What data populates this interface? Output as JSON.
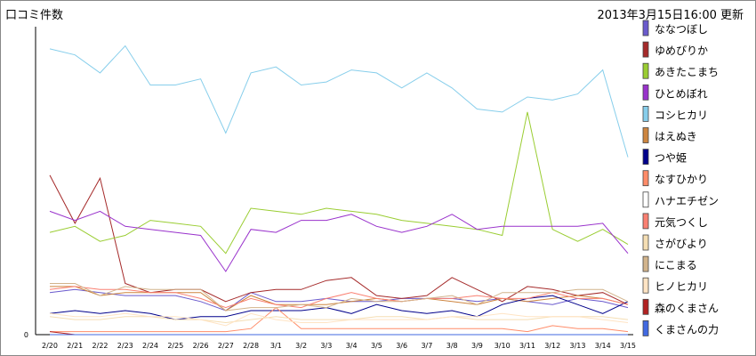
{
  "header": {
    "title": "口コミ件数",
    "updated": "2013年3月15日16:00 更新"
  },
  "chart_data": {
    "type": "line",
    "title": "口コミ件数",
    "xlabel": "",
    "ylabel": "",
    "ylim": [
      0,
      100
    ],
    "y_ticks": [
      "0"
    ],
    "legend_position": "right",
    "grid": false,
    "x": [
      "2/20",
      "2/21",
      "2/22",
      "2/23",
      "2/24",
      "2/25",
      "2/26",
      "2/27",
      "2/28",
      "3/1",
      "3/2",
      "3/3",
      "3/4",
      "3/5",
      "3/6",
      "3/7",
      "3/8",
      "3/9",
      "3/10",
      "3/11",
      "3/12",
      "3/13",
      "3/14",
      "3/15"
    ],
    "series": [
      {
        "name": "ななつぼし",
        "color": "#6a5acd",
        "values": [
          14,
          15,
          14,
          13,
          13,
          13,
          11,
          8,
          14,
          11,
          11,
          12,
          11,
          11,
          12,
          12,
          12,
          11,
          12,
          11,
          10,
          12,
          11,
          9
        ]
      },
      {
        "name": "ゆめぴりか",
        "color": "#a52a2a",
        "values": [
          53,
          37,
          52,
          17,
          14,
          15,
          15,
          11,
          14,
          15,
          15,
          18,
          19,
          13,
          12,
          13,
          19,
          15,
          11,
          16,
          15,
          13,
          14,
          10
        ]
      },
      {
        "name": "あきたこまち",
        "color": "#9acd32",
        "values": [
          34,
          36,
          31,
          33,
          38,
          37,
          36,
          27,
          42,
          41,
          40,
          42,
          41,
          40,
          38,
          37,
          36,
          35,
          33,
          74,
          35,
          31,
          35,
          30
        ]
      },
      {
        "name": "ひとめぼれ",
        "color": "#9932cc",
        "values": [
          41,
          38,
          41,
          36,
          35,
          34,
          33,
          21,
          35,
          34,
          38,
          38,
          40,
          36,
          34,
          36,
          40,
          35,
          36,
          36,
          36,
          36,
          37,
          27
        ]
      },
      {
        "name": "コシヒカリ",
        "color": "#87ceeb",
        "values": [
          95,
          93,
          87,
          96,
          83,
          83,
          85,
          67,
          87,
          89,
          83,
          84,
          88,
          87,
          82,
          87,
          82,
          75,
          74,
          79,
          78,
          80,
          88,
          59
        ]
      },
      {
        "name": "はえぬき",
        "color": "#cd853f",
        "values": [
          16,
          16,
          13,
          14,
          14,
          14,
          14,
          8,
          13,
          10,
          10,
          10,
          11,
          12,
          11,
          12,
          11,
          10,
          12,
          11,
          12,
          13,
          12,
          10
        ]
      },
      {
        "name": "つや姫",
        "color": "#00008b",
        "values": [
          7,
          8,
          7,
          8,
          7,
          5,
          6,
          6,
          8,
          8,
          8,
          9,
          7,
          10,
          8,
          7,
          8,
          6,
          10,
          12,
          13,
          10,
          7,
          11
        ]
      },
      {
        "name": "なすひかり",
        "color": "#ff8c69",
        "values": [
          1,
          1,
          1,
          1,
          1,
          1,
          1,
          1,
          2,
          9,
          2,
          2,
          2,
          2,
          2,
          2,
          2,
          2,
          2,
          1,
          3,
          2,
          2,
          1
        ]
      },
      {
        "name": "ハナエチゼン",
        "color": "#ffffff",
        "values": [
          0,
          0,
          0,
          0,
          0,
          0,
          0,
          0,
          0,
          0,
          0,
          0,
          0,
          0,
          0,
          0,
          0,
          0,
          0,
          0,
          0,
          0,
          0,
          0
        ]
      },
      {
        "name": "元気つくし",
        "color": "#fa8072",
        "values": [
          15,
          16,
          15,
          15,
          14,
          14,
          12,
          9,
          12,
          10,
          9,
          12,
          14,
          12,
          11,
          12,
          12,
          13,
          12,
          12,
          14,
          12,
          12,
          10
        ]
      },
      {
        "name": "さがびより",
        "color": "#f5deb3",
        "values": [
          6,
          5,
          5,
          6,
          6,
          5,
          5,
          4,
          5,
          6,
          5,
          5,
          5,
          6,
          6,
          5,
          6,
          5,
          5,
          5,
          6,
          6,
          6,
          5
        ]
      },
      {
        "name": "にこまる",
        "color": "#d2b48c",
        "values": [
          17,
          17,
          13,
          16,
          15,
          15,
          15,
          8,
          9,
          9,
          10,
          9,
          12,
          11,
          11,
          12,
          13,
          10,
          14,
          14,
          14,
          15,
          15,
          11
        ]
      },
      {
        "name": "ヒノヒカリ",
        "color": "#ffe4c4",
        "values": [
          7,
          6,
          6,
          7,
          6,
          6,
          5,
          3,
          7,
          5,
          4,
          4,
          5,
          5,
          5,
          5,
          6,
          6,
          7,
          6,
          6,
          6,
          5,
          4
        ]
      },
      {
        "name": "森のくまさん",
        "color": "#b22222",
        "values": [
          1,
          0,
          0,
          0,
          0,
          0,
          0,
          0,
          0,
          0,
          0,
          0,
          0,
          0,
          0,
          0,
          0,
          0,
          0,
          0,
          0,
          0,
          0,
          0
        ]
      },
      {
        "name": "くまさんの力",
        "color": "#4169e1",
        "values": [
          0,
          0,
          0,
          0,
          0,
          0,
          0,
          0,
          0,
          0,
          0,
          0,
          0,
          0,
          0,
          0,
          0,
          0,
          0,
          0,
          0,
          0,
          0,
          0
        ]
      }
    ]
  }
}
